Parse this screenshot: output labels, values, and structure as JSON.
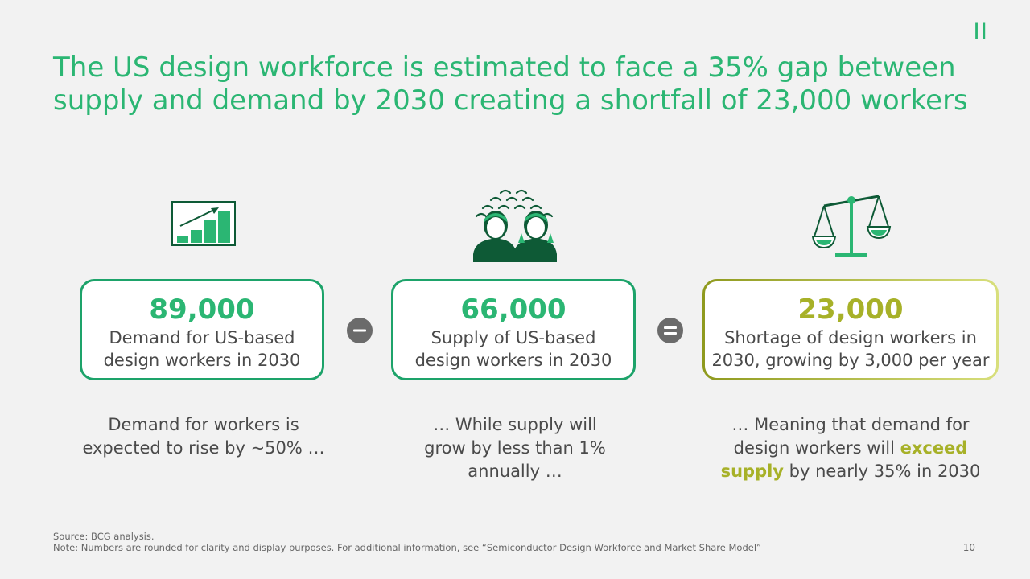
{
  "header": {
    "section_mark": "II",
    "title_line1": "The US design workforce is estimated to face a 35% gap between",
    "title_line2": "supply and demand by 2030 creating a shortfall of 23,000 workers"
  },
  "icons": {
    "demand": "growth-chart-icon",
    "supply": "workers-group-icon",
    "shortage": "balance-scale-icon"
  },
  "boxes": {
    "demand": {
      "number": "89,000",
      "label_line1": "Demand for US-based",
      "label_line2": "design workers in 2030"
    },
    "supply": {
      "number": "66,000",
      "label_line1": "Supply of US-based",
      "label_line2": "design workers in 2030"
    },
    "shortage": {
      "number": "23,000",
      "label_line1": "Shortage of design workers in",
      "label_line2": "2030, growing by 3,000 per year"
    }
  },
  "operators": {
    "minus": "minus-icon",
    "equals": "equals-icon"
  },
  "captions": {
    "demand": {
      "line1": "Demand for workers is",
      "line2": "expected to rise by ~50% …"
    },
    "supply": {
      "line1": "… While supply will",
      "line2": "grow by less than 1%",
      "line3": "annually …"
    },
    "shortage": {
      "line1": "… Meaning that demand for",
      "line2_pre": "design workers will ",
      "line2_hl": "exceed",
      "line3_hl": "supply",
      "line3_post": " by nearly 35% in 2030"
    }
  },
  "footer": {
    "source": "Source: BCG analysis.",
    "note": "Note: Numbers are rounded for clarity and display purposes. For additional information, see “Semiconductor Design Workforce and Market Share Model”",
    "page_number": "10"
  },
  "colors": {
    "accent_green": "#2bb673",
    "border_green": "#1da36a",
    "dark_green": "#0e5a36",
    "olive": "#a7b128",
    "operator_gray": "#6b6b6b",
    "text_gray": "#4a4a4a",
    "background": "#f2f2f2"
  }
}
